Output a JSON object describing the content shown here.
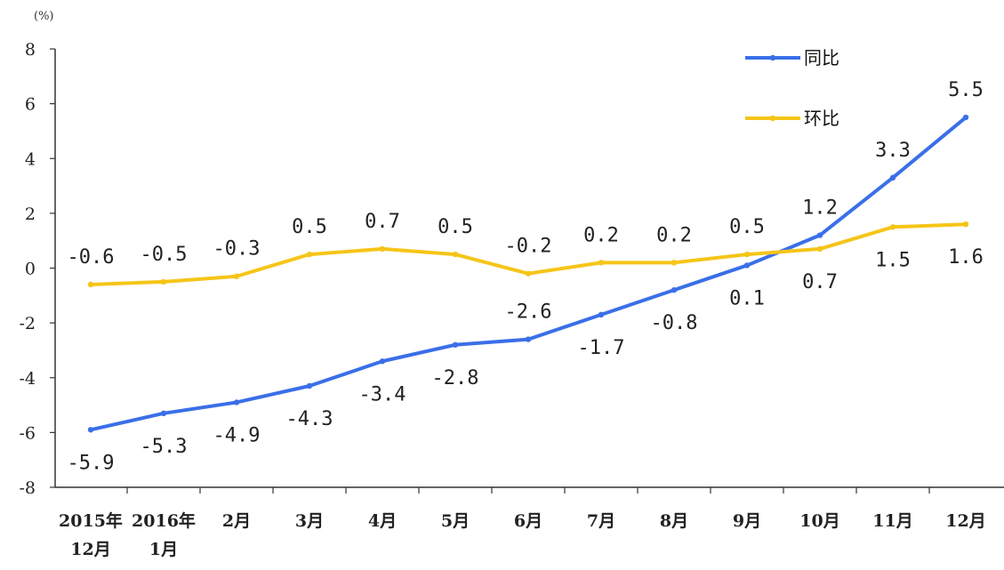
{
  "chart_data": {
    "type": "line",
    "unit": "(%)",
    "categories": [
      [
        "2015年",
        "12月"
      ],
      [
        "2016年",
        "1月"
      ],
      [
        "2月"
      ],
      [
        "3月"
      ],
      [
        "4月"
      ],
      [
        "5月"
      ],
      [
        "6月"
      ],
      [
        "7月"
      ],
      [
        "8月"
      ],
      [
        "9月"
      ],
      [
        "10月"
      ],
      [
        "11月"
      ],
      [
        "12月"
      ]
    ],
    "ylim": [
      -8,
      8
    ],
    "yticks": [
      8,
      6,
      4,
      2,
      0,
      -2,
      -4,
      -6,
      -8
    ],
    "ytick_labels": [
      "8",
      "6",
      "4",
      "2",
      "0",
      "-2",
      "-4",
      "-6",
      "-8"
    ],
    "grid": false,
    "legend_position": "top-right",
    "series": [
      {
        "name": "同比",
        "color": "#3a6fe8",
        "values": [
          -5.9,
          -5.3,
          -4.9,
          -4.3,
          -3.4,
          -2.8,
          -2.6,
          -1.7,
          -0.8,
          0.1,
          1.2,
          3.3,
          5.5
        ],
        "labels": [
          "-5.9",
          "-5.3",
          "-4.9",
          "-4.3",
          "-3.4",
          "-2.8",
          "-2.6",
          "-1.7",
          "-0.8",
          "0.1",
          "1.2",
          "3.3",
          "5.5"
        ],
        "label_side": [
          "below",
          "below",
          "below",
          "below",
          "below",
          "below",
          "above",
          "below",
          "below",
          "below",
          "above",
          "above",
          "above"
        ]
      },
      {
        "name": "环比",
        "color": "#f5c518",
        "values": [
          -0.6,
          -0.5,
          -0.3,
          0.5,
          0.7,
          0.5,
          -0.2,
          0.2,
          0.2,
          0.5,
          0.7,
          1.5,
          1.6
        ],
        "labels": [
          "-0.6",
          "-0.5",
          "-0.3",
          "0.5",
          "0.7",
          "0.5",
          "-0.2",
          "0.2",
          "0.2",
          "0.5",
          "0.7",
          "1.5",
          "1.6"
        ],
        "label_side": [
          "above",
          "above",
          "above",
          "above",
          "above",
          "above",
          "above",
          "above",
          "above",
          "above",
          "below",
          "below",
          "below"
        ]
      }
    ]
  }
}
